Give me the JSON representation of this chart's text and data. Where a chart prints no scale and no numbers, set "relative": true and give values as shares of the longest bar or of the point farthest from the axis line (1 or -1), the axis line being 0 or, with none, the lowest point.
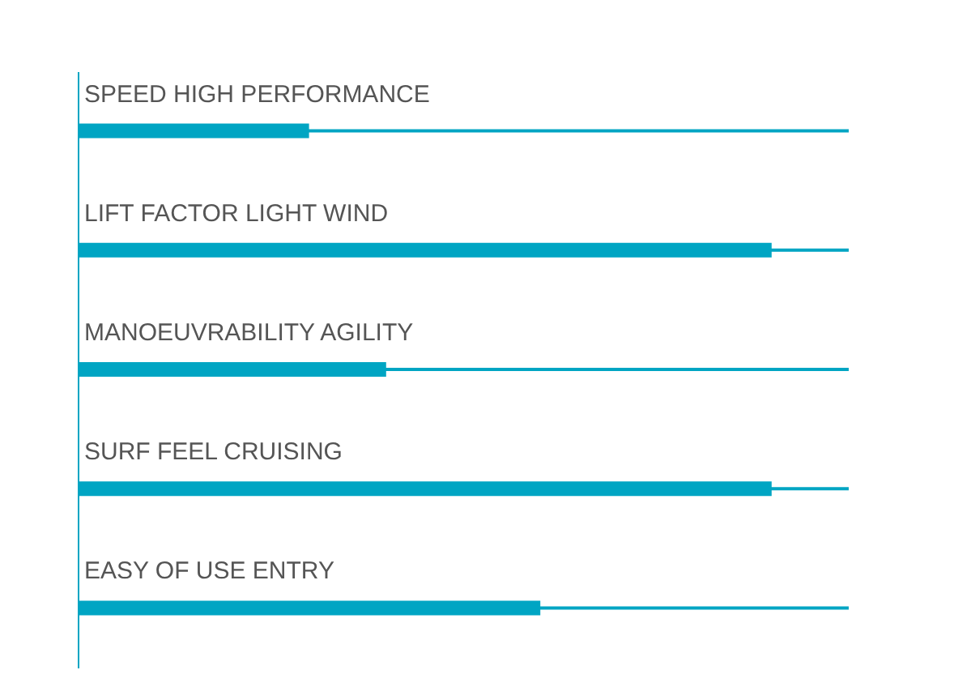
{
  "chart_data": {
    "type": "bar",
    "orientation": "horizontal",
    "relative": true,
    "categories": [
      "SPEED HIGH PERFORMANCE",
      "LIFT FACTOR LIGHT WIND",
      "MANOEUVRABILITY AGILITY",
      "SURF FEEL CRUISING",
      "EASY OF USE ENTRY"
    ],
    "series": [
      {
        "color": "#00a5c3",
        "values": [
          1,
          1,
          1,
          1,
          1
        ]
      },
      {
        "color": "#00a5c3",
        "values": [
          0.3,
          0.9,
          0.4,
          0.9,
          0.6
        ]
      }
    ]
  }
}
